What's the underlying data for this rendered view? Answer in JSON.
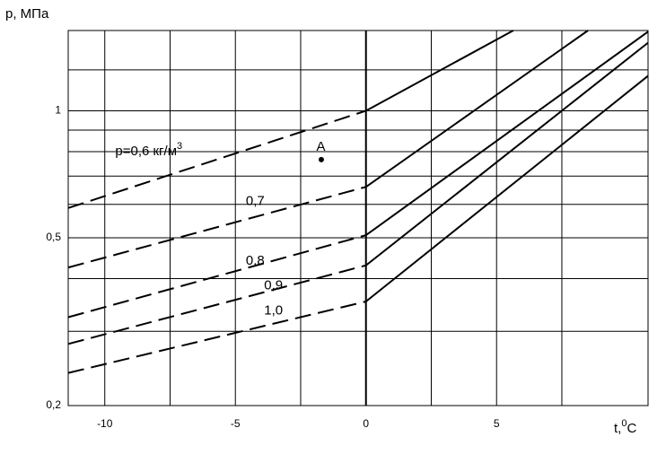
{
  "chart_data": {
    "type": "line",
    "y_label": "p, МПа",
    "x_label": {
      "text": "t,",
      "sup": "0",
      "after": "C"
    },
    "xlim": [
      -11.4,
      10.8
    ],
    "ylim": [
      0.2,
      1.55
    ],
    "log_y": true,
    "xticks": [
      -10,
      -5,
      0,
      5
    ],
    "yticks": [
      {
        "value": 0.2,
        "label": "0,2"
      },
      {
        "value": 0.5,
        "label": "0,5"
      },
      1
    ],
    "xgrid": [
      -10,
      -7.5,
      -5,
      -2.5,
      0,
      2.5,
      5,
      7.5
    ],
    "ygrid": [
      0.3,
      0.4,
      0.5,
      0.6,
      0.7,
      0.8,
      0.9,
      1,
      1.25
    ],
    "grid": true,
    "color": "#000000",
    "series": [
      {
        "dashed": true,
        "x": [
          -11.4,
          0
        ],
        "values": [
          0.588,
          1.0
        ]
      },
      {
        "dashed": false,
        "x": [
          0,
          5.64
        ],
        "values": [
          1.0,
          1.55
        ]
      },
      {
        "dashed": true,
        "x": [
          -11.4,
          0
        ],
        "values": [
          0.425,
          0.66
        ]
      },
      {
        "dashed": false,
        "x": [
          0,
          8.5
        ],
        "values": [
          0.66,
          1.55
        ]
      },
      {
        "dashed": true,
        "x": [
          -11.4,
          0
        ],
        "values": [
          0.324,
          0.507
        ]
      },
      {
        "dashed": false,
        "x": [
          0,
          10.8
        ],
        "values": [
          0.507,
          1.54
        ]
      },
      {
        "dashed": true,
        "x": [
          -11.4,
          0
        ],
        "values": [
          0.28,
          0.43
        ]
      },
      {
        "dashed": false,
        "x": [
          0,
          10.8
        ],
        "values": [
          0.43,
          1.45
        ]
      },
      {
        "dashed": true,
        "x": [
          -11.4,
          0
        ],
        "values": [
          0.239,
          0.353
        ]
      },
      {
        "dashed": false,
        "x": [
          0,
          10.8
        ],
        "values": [
          0.353,
          1.21
        ]
      }
    ],
    "annotations": [
      {
        "text": "р=0,6 кг/м",
        "sup": "3",
        "x": -9.6,
        "y": 0.8
      },
      {
        "text": "0,7",
        "x": -4.6,
        "y": 0.61
      },
      {
        "text": "0,8",
        "x": -4.6,
        "y": 0.44
      },
      {
        "text": "0,9",
        "x": -3.9,
        "y": 0.385
      },
      {
        "text": "1,0",
        "x": -3.9,
        "y": 0.335
      },
      {
        "text": "A",
        "x": -1.9,
        "y": 0.82
      }
    ],
    "point": {
      "x": -1.71,
      "y": 0.766
    }
  }
}
